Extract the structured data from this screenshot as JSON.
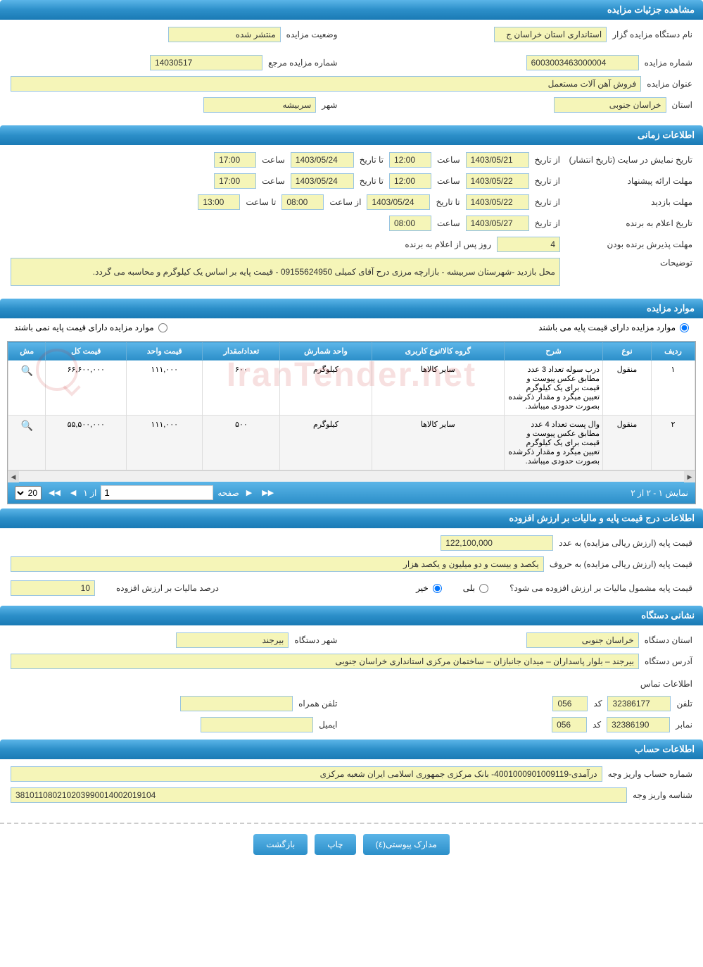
{
  "sections": {
    "details": "مشاهده جزئیات مزایده",
    "time": "اطلاعات زمانی",
    "items": "موارد مزایده",
    "price": "اطلاعات درج قیمت پایه و مالیات بر ارزش افزوده",
    "org": "نشانی دستگاه",
    "account": "اطلاعات حساب"
  },
  "details": {
    "org_label": "نام دستگاه مزایده گزار",
    "org_value": "استانداری استان خراسان ج",
    "status_label": "وضعیت مزایده",
    "status_value": "منتشر شده",
    "num_label": "شماره مزایده",
    "num_value": "6003003463000004",
    "ref_label": "شماره مزایده مرجع",
    "ref_value": "14030517",
    "title_label": "عنوان مزایده",
    "title_value": "فروش آهن آلات مستعمل",
    "province_label": "استان",
    "province_value": "خراسان جنوبی",
    "city_label": "شهر",
    "city_value": "سربیشه"
  },
  "time": {
    "publish_label": "تاریخ نمایش در سایت (تاریخ انتشار)",
    "from_label": "از تاریخ",
    "to_label": "تا تاریخ",
    "hour_label": "ساعت",
    "from_hour_label": "از ساعت",
    "to_hour_label": "تا ساعت",
    "publish_from": "1403/05/21",
    "publish_from_time": "12:00",
    "publish_to": "1403/05/24",
    "publish_to_time": "17:00",
    "offer_label": "مهلت ارائه پیشنهاد",
    "offer_from": "1403/05/22",
    "offer_from_time": "12:00",
    "offer_to": "1403/05/24",
    "offer_to_time": "17:00",
    "visit_label": "مهلت بازدید",
    "visit_from": "1403/05/22",
    "visit_to": "1403/05/24",
    "visit_from_time": "08:00",
    "visit_to_time": "13:00",
    "winner_label": "تاریخ اعلام به برنده",
    "winner_date": "1403/05/27",
    "winner_time": "08:00",
    "accept_label": "مهلت پذیرش برنده بودن",
    "accept_days": "4",
    "accept_suffix": "روز پس از اعلام به برنده",
    "notes_label": "توضیحات",
    "notes_value": "محل بازدید -شهرستان سربیشه - بازارچه مرزی درح آقای کمیلی 09155624950 - قیمت پایه بر اساس یک کیلوگرم و محاسبه می گردد."
  },
  "items_opts": {
    "has_base": "موارد مزایده دارای قیمت پایه می باشند",
    "no_base": "موارد مزایده دارای قیمت پایه نمی باشند"
  },
  "table": {
    "headers": {
      "row": "ردیف",
      "type": "نوع",
      "desc": "شرح",
      "group": "گروه کالا/نوع کاربری",
      "unit": "واحد شمارش",
      "qty": "تعداد/مقدار",
      "unit_price": "قیمت واحد",
      "total": "قیمت کل",
      "action": "مش"
    },
    "rows": [
      {
        "n": "۱",
        "type": "منقول",
        "desc": "درب سوله تعداد 3 عدد مطابق عکس پیوست و قیمت برای یک کیلوگرم تعیین میگرد و مقدار ذکرشده بصورت حدودی میباشد.",
        "group": "سایر کالاها",
        "unit": "کیلوگرم",
        "qty": "۶۰۰",
        "unit_price": "۱۱۱,۰۰۰",
        "total": "۶۶,۶۰۰,۰۰۰"
      },
      {
        "n": "۲",
        "type": "منقول",
        "desc": "وال پست تعداد 4 عدد مطابق عکس پیوست و قیمت برای یک کیلوگرم تعیین میگرد و مقدار ذکرشده بصورت حدودی میباشد.",
        "group": "سایر کالاها",
        "unit": "کیلوگرم",
        "qty": "۵۰۰",
        "unit_price": "۱۱۱,۰۰۰",
        "total": "۵۵,۵۰۰,۰۰۰"
      }
    ]
  },
  "pager": {
    "info": "نمایش ۱ - ۲ از ۲",
    "page_label": "صفحه",
    "page_value": "1",
    "of_label": "از ۱",
    "page_size": "20"
  },
  "price": {
    "num_label": "قیمت پایه (ارزش ریالی مزایده) به عدد",
    "num_value": "122,100,000",
    "word_label": "قیمت پایه (ارزش ریالی مزایده) به حروف",
    "word_value": "یکصد و بیست و دو میلیون و یکصد هزار",
    "vat_q": "قیمت پایه مشمول مالیات بر ارزش افزوده می شود؟",
    "yes": "بلی",
    "no": "خیر",
    "vat_pct_label": "درصد مالیات بر ارزش افزوده",
    "vat_pct_value": "10"
  },
  "org": {
    "province_label": "استان دستگاه",
    "province_value": "خراسان جنوبی",
    "city_label": "شهر دستگاه",
    "city_value": "بیرجند",
    "addr_label": "آدرس دستگاه",
    "addr_value": "بیرجند – بلوار پاسداران – میدان جانبازان – ساختمان مرکزی استانداری خراسان جنوبی",
    "contact_label": "اطلاعات تماس",
    "phone_label": "تلفن",
    "phone_value": "32386177",
    "code_label": "کد",
    "code_value": "056",
    "mobile_label": "تلفن همراه",
    "mobile_value": "",
    "fax_label": "نمابر",
    "fax_value": "32386190",
    "fax_code": "056",
    "email_label": "ایمیل",
    "email_value": ""
  },
  "account": {
    "acc_label": "شماره حساب واریز وجه",
    "acc_value": "درآمدی-4001000901009119- بانک مرکزی جمهوری اسلامی ایران شعبه مرکزی",
    "id_label": "شناسه واریز وجه",
    "id_value": "381011080210203990014002019104"
  },
  "buttons": {
    "attach": "مدارک پیوستی(٤)",
    "print": "چاپ",
    "back": "بازگشت"
  },
  "watermark": "IranTender.net",
  "colors": {
    "header_grad_top": "#5bb5e8",
    "header_grad_bottom": "#1a7ab5",
    "field_bg": "#f5f5b8",
    "field_border": "#9ac5e0"
  }
}
